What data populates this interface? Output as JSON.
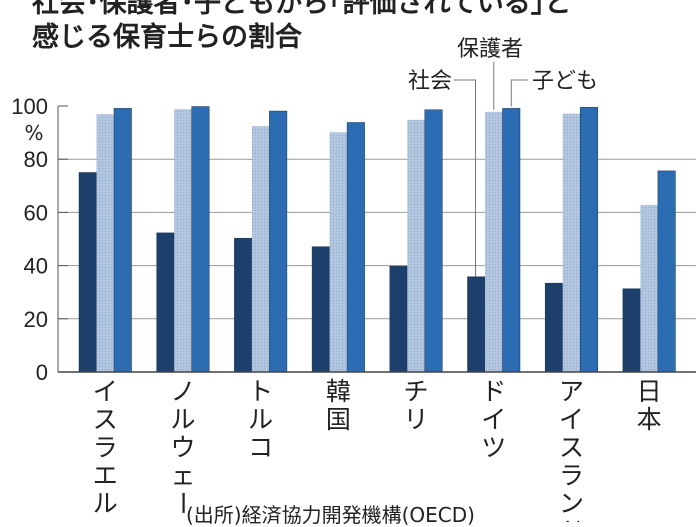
{
  "chart_data": {
    "type": "bar",
    "title_line1": "社会･保護者･子どもから｢評価されている｣と",
    "title_line2": "感じる保育士らの割合",
    "ylabel": "%",
    "ylim": [
      0,
      100
    ],
    "yticks": [
      0,
      20,
      40,
      60,
      80,
      100
    ],
    "grid": true,
    "categories": [
      "イスラエル",
      "ノルウェー",
      "トルコ",
      "韓国",
      "チリ",
      "ドイツ",
      "アイスランド",
      "日本"
    ],
    "series": [
      {
        "name": "社会",
        "color": "#1c3f6b",
        "values": [
          75.0,
          52.3,
          50.3,
          47.1,
          39.8,
          35.8,
          33.4,
          31.3
        ]
      },
      {
        "name": "保護者",
        "color": "#b3c6e0",
        "values": [
          96.9,
          98.8,
          92.4,
          90.1,
          94.8,
          97.8,
          97.1,
          62.8
        ]
      },
      {
        "name": "子ども",
        "color": "#2b6cb3",
        "values": [
          99.1,
          99.8,
          98.1,
          93.8,
          98.6,
          99.1,
          99.5,
          75.6
        ]
      }
    ],
    "legend": "callouts-top-right",
    "source": "(出所)経済協力開発機構(OECD)"
  }
}
